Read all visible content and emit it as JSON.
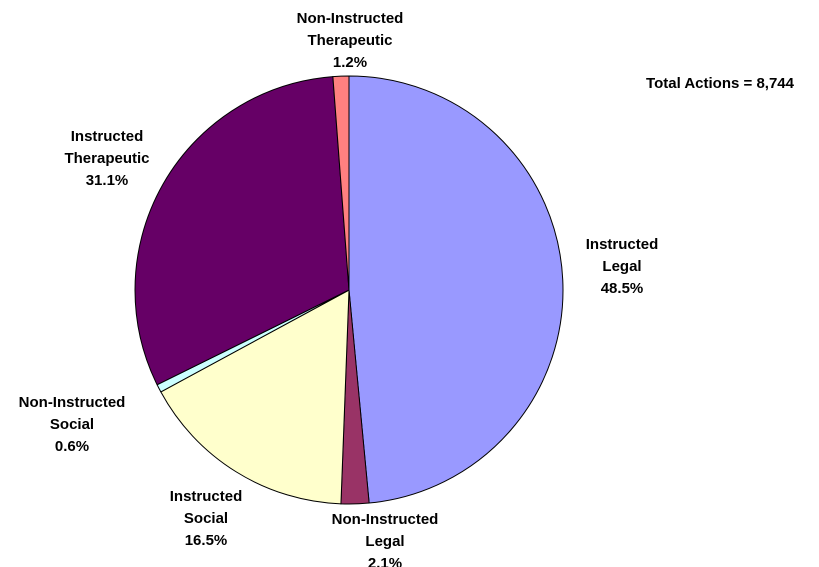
{
  "chart_data": {
    "type": "pie",
    "title": "",
    "annotation": "Total Actions = 8,744",
    "start_angle_deg": 0,
    "direction": "clockwise",
    "slices": [
      {
        "label": [
          "Instructed",
          "Legal"
        ],
        "value": 48.5,
        "display": "48.5%",
        "color": "#9999ff"
      },
      {
        "label": [
          "Non-Instructed",
          "Legal"
        ],
        "value": 2.1,
        "display": "2.1%",
        "color": "#993366"
      },
      {
        "label": [
          "Instructed",
          "Social"
        ],
        "value": 16.5,
        "display": "16.5%",
        "color": "#ffffcc"
      },
      {
        "label": [
          "Non-Instructed",
          "Social"
        ],
        "value": 0.6,
        "display": "0.6%",
        "color": "#ccffff"
      },
      {
        "label": [
          "Instructed",
          "Therapeutic"
        ],
        "value": 31.1,
        "display": "31.1%",
        "color": "#660066"
      },
      {
        "label": [
          "Non-Instructed",
          "Therapeutic"
        ],
        "value": 1.2,
        "display": "1.2%",
        "color": "#ff8080"
      }
    ]
  }
}
